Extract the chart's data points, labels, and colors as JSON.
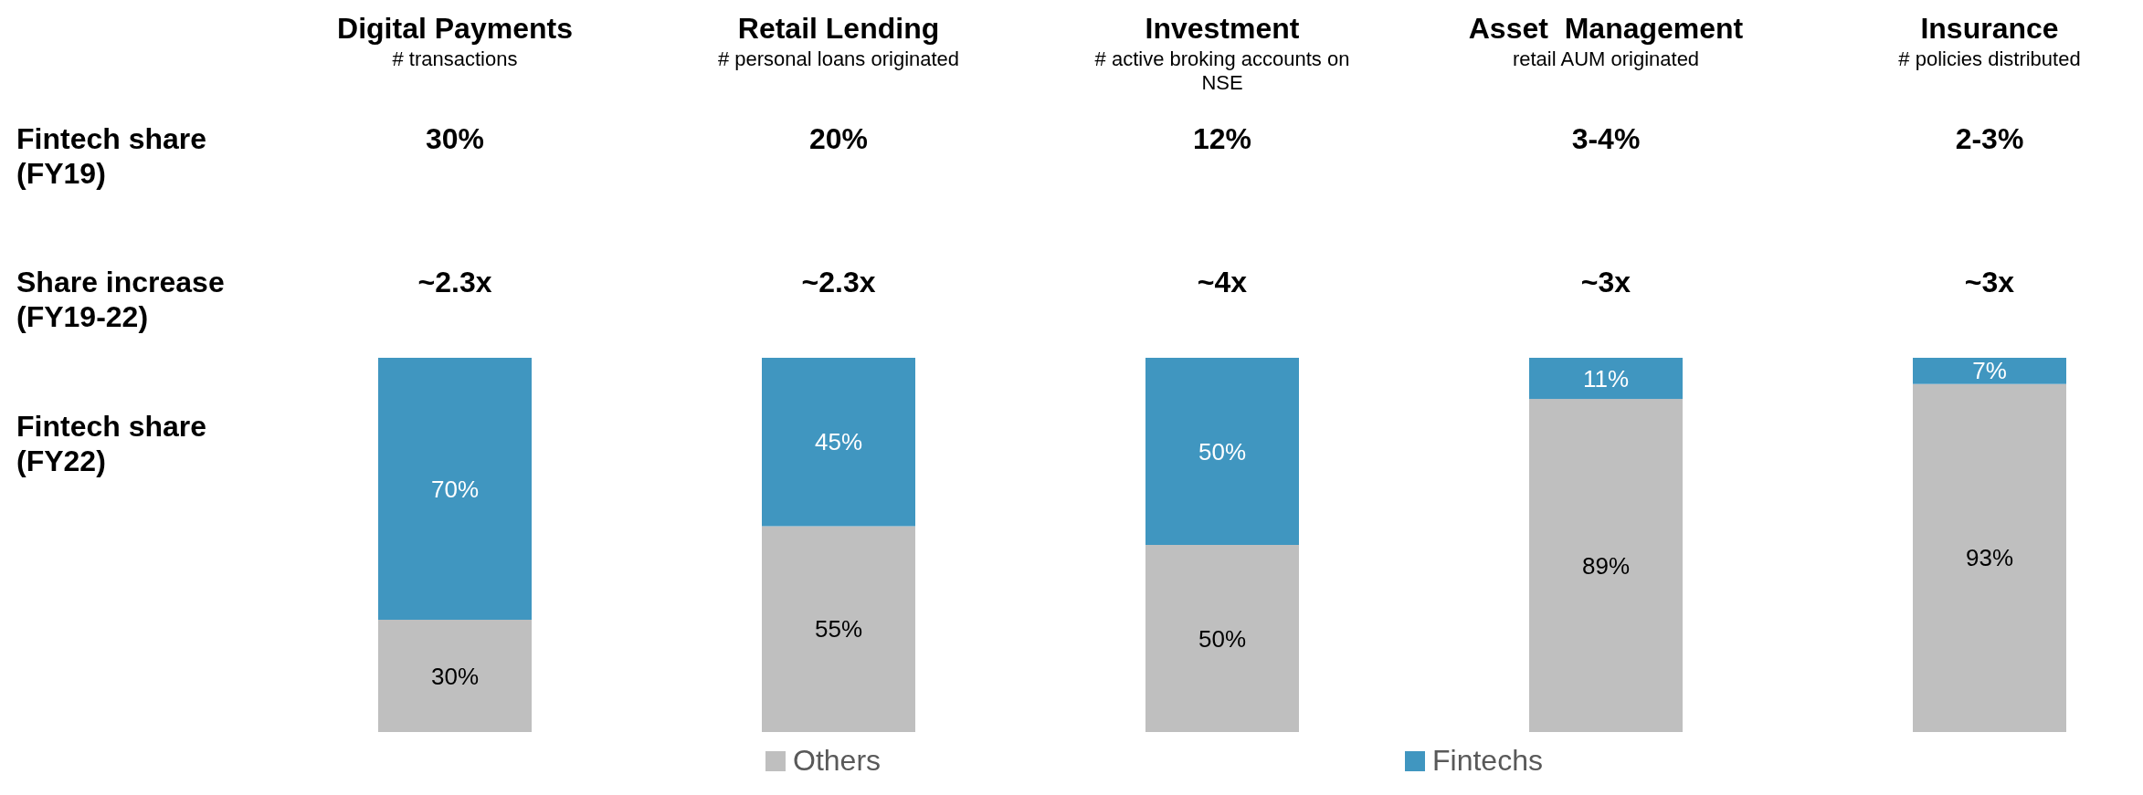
{
  "chart_data": {
    "type": "bar",
    "stacked": true,
    "legend": "bottom",
    "categories": [
      "Digital Payments",
      "Retail Lending",
      "Investment",
      "Asset  Management",
      "Insurance"
    ],
    "series": [
      {
        "name": "Others",
        "color": "#bfbfbf",
        "values": [
          30,
          55,
          50,
          89,
          93
        ],
        "value_labels": [
          "30%",
          "55%",
          "50%",
          "89%",
          "93%"
        ]
      },
      {
        "name": "Fintechs",
        "color": "#4096c0",
        "values": [
          70,
          45,
          50,
          11,
          7
        ],
        "value_labels": [
          "70%",
          "45%",
          "50%",
          "11%",
          "7%"
        ]
      }
    ],
    "annotations": [
      "# transactions",
      "# personal loans originated",
      "# active broking accounts on NSE",
      "retail AUM originated",
      "# policies distributed",
      "30%",
      "20%",
      "12%",
      "3-4%",
      "2-3%",
      "~2.3x",
      "~2.3x",
      "~4x",
      "~3x",
      "~3x",
      "Fintech share (FY19)",
      "Share increase (FY19-22)",
      "Fintech share (FY22)"
    ]
  }
}
